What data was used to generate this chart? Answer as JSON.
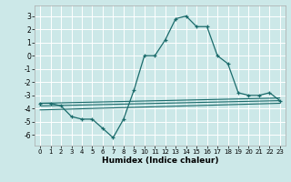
{
  "xlabel": "Humidex (Indice chaleur)",
  "xlim": [
    -0.5,
    23.5
  ],
  "ylim": [
    -6.8,
    3.8
  ],
  "yticks": [
    -6,
    -5,
    -4,
    -3,
    -2,
    -1,
    0,
    1,
    2,
    3
  ],
  "xticks": [
    0,
    1,
    2,
    3,
    4,
    5,
    6,
    7,
    8,
    9,
    10,
    11,
    12,
    13,
    14,
    15,
    16,
    17,
    18,
    19,
    20,
    21,
    22,
    23
  ],
  "bg_color": "#cce8e8",
  "line_color": "#1a6b6b",
  "grid_color": "#ffffff",
  "line1_x": [
    0,
    23
  ],
  "line1_y": [
    -3.6,
    -3.2
  ],
  "line2_x": [
    0,
    23
  ],
  "line2_y": [
    -3.8,
    -3.4
  ],
  "line3_x": [
    0,
    23
  ],
  "line3_y": [
    -4.1,
    -3.6
  ],
  "curve_x": [
    0,
    1,
    2,
    3,
    4,
    5,
    6,
    7,
    8,
    9,
    10,
    11,
    12,
    13,
    14,
    15,
    16,
    17,
    18,
    19,
    20,
    21,
    22,
    23
  ],
  "curve_y": [
    -3.6,
    -3.6,
    -3.8,
    -4.6,
    -4.8,
    -4.8,
    -5.5,
    -6.2,
    -4.8,
    -2.6,
    0.0,
    0.0,
    1.2,
    2.8,
    3.0,
    2.2,
    2.2,
    0.0,
    -0.6,
    -2.8,
    -3.0,
    -3.0,
    -2.8,
    -3.4
  ]
}
